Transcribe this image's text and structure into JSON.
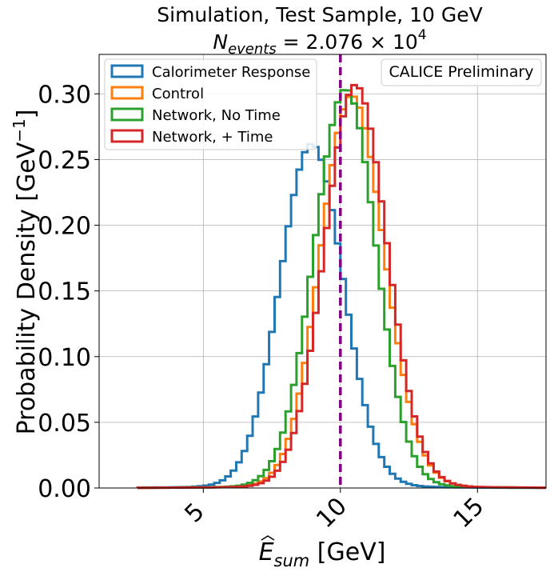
{
  "chart_data": {
    "type": "line",
    "title_line1": "Simulation, Test Sample, 10 GeV",
    "title_line2_prefix": "N",
    "title_line2_sub": "events",
    "title_line2_mid": " = 2.076 × 10",
    "title_line2_sup": "4",
    "xlabel_main": "E",
    "xlabel_sub": "sum",
    "xlabel_unit": " [GeV]",
    "ylabel": "Probability Density [GeV",
    "ylabel_sup": "−1",
    "ylabel_end": "]",
    "annotation": "CALICE Preliminary",
    "xlim": [
      1.2,
      17.5
    ],
    "ylim": [
      0,
      0.33
    ],
    "x_ticks": [
      5,
      10,
      15
    ],
    "x_tick_labels": [
      "5",
      "10",
      "15"
    ],
    "y_ticks": [
      0.0,
      0.05,
      0.1,
      0.15,
      0.2,
      0.25,
      0.3
    ],
    "y_tick_labels": [
      "0.00",
      "0.05",
      "0.10",
      "0.15",
      "0.20",
      "0.25",
      "0.30"
    ],
    "grid": true,
    "legend_position": "top-left",
    "reference_line": {
      "x": 10,
      "color": "#800080",
      "style": "dashed"
    },
    "bin_width": 0.2,
    "series": [
      {
        "name": "Calorimeter Response",
        "color": "#1f77b4",
        "peak": 8.95,
        "sigma_left": 1.15,
        "sigma_right": 1.15,
        "amplitude": 0.258
      },
      {
        "name": "Control",
        "color": "#ff7f0e",
        "peak": 10.4,
        "sigma_left": 1.12,
        "sigma_right": 1.2,
        "amplitude": 0.295
      },
      {
        "name": "Network, No Time",
        "color": "#2ca02c",
        "peak": 10.2,
        "sigma_left": 1.15,
        "sigma_right": 1.1,
        "amplitude": 0.3
      },
      {
        "name": "Network, + Time",
        "color": "#d62728",
        "peak": 10.55,
        "sigma_left": 1.12,
        "sigma_right": 1.15,
        "amplitude": 0.303
      }
    ]
  }
}
